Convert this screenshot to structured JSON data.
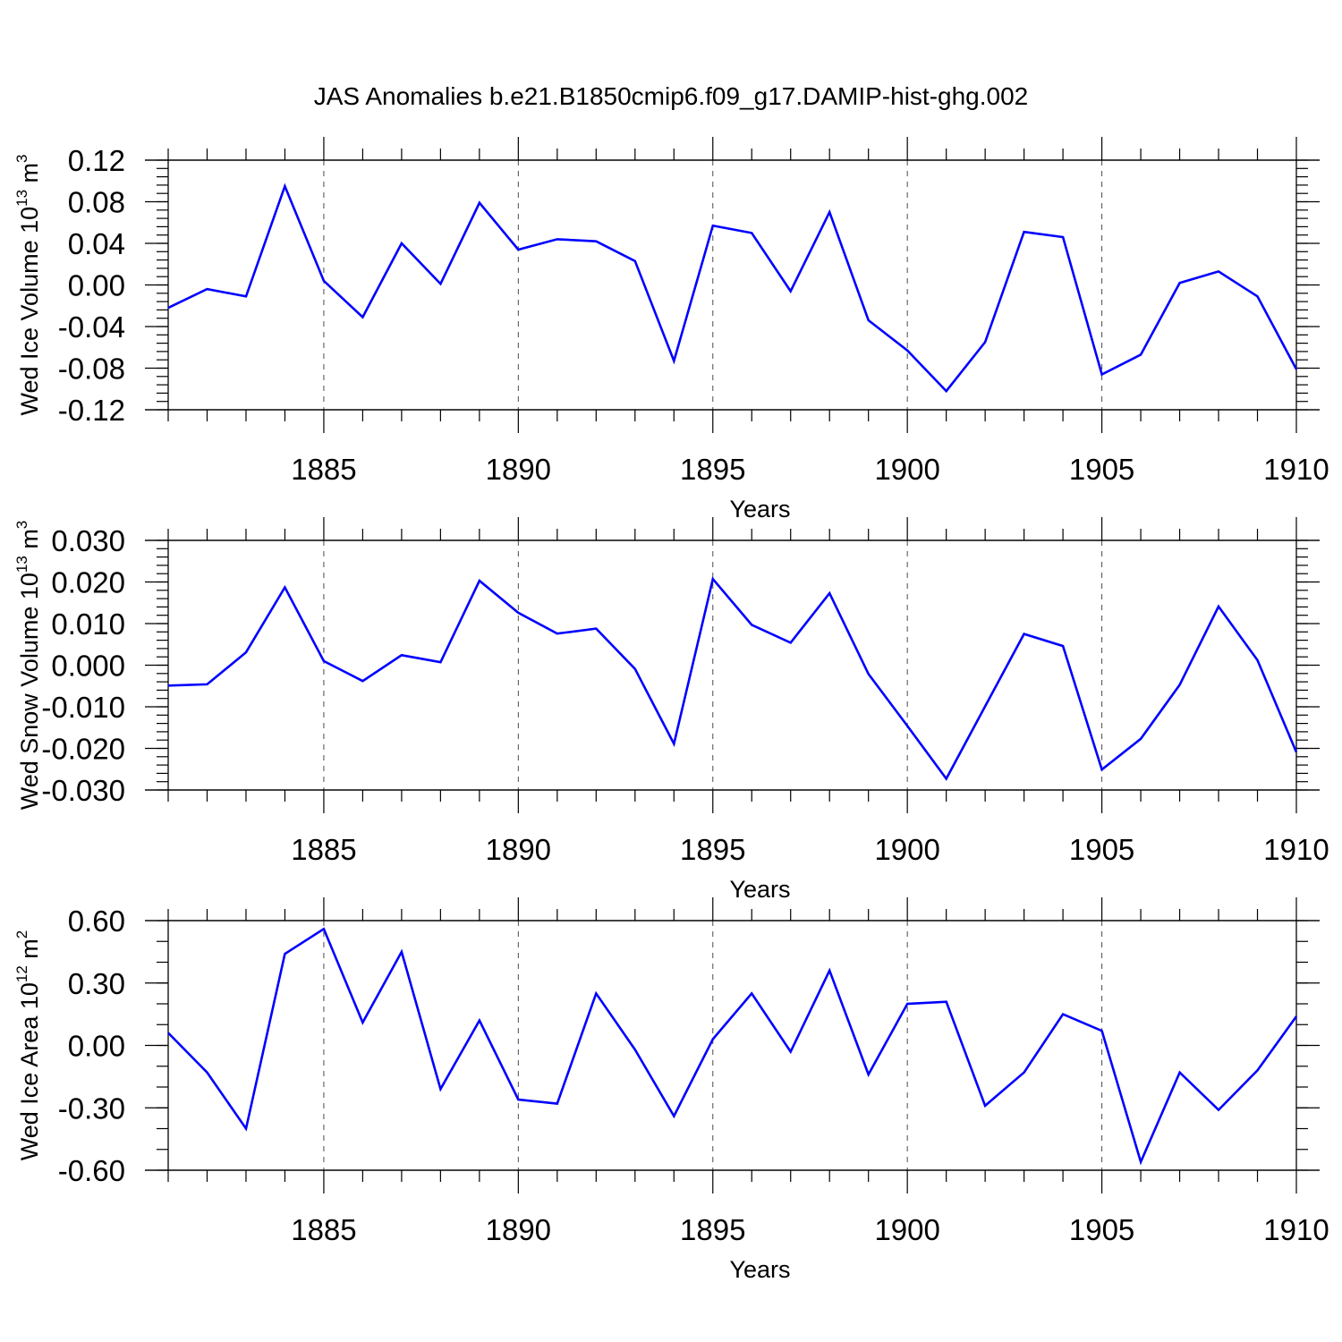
{
  "title": "JAS Anomalies b.e21.B1850cmip6.f09_g17.DAMIP-hist-ghg.002",
  "line_color": "#0000ff",
  "chart_data": [
    {
      "type": "line",
      "title": "JAS Anomalies b.e21.B1850cmip6.f09_g17.DAMIP-hist-ghg.002",
      "xlabel": "Years",
      "ylabel": {
        "text": "Wed Ice Volume 10",
        "sup": "13",
        "unit": " m",
        "unit_sup": "3"
      },
      "xlim": [
        1881,
        1910
      ],
      "ylim": [
        -0.12,
        0.12
      ],
      "x_ticks": [
        1885,
        1890,
        1895,
        1900,
        1905,
        1910
      ],
      "y_ticks": [
        -0.12,
        -0.08,
        -0.04,
        0.0,
        0.04,
        0.08,
        0.12
      ],
      "y_tick_labels": [
        "-0.12",
        "-0.08",
        "-0.04",
        "0.00",
        "0.04",
        "0.08",
        "0.12"
      ],
      "y_minor_step": 0.008,
      "vertical_grid": "dashed at major x ticks",
      "x": [
        1881,
        1882,
        1883,
        1884,
        1885,
        1886,
        1887,
        1888,
        1889,
        1890,
        1891,
        1892,
        1893,
        1894,
        1895,
        1896,
        1897,
        1898,
        1899,
        1900,
        1901,
        1902,
        1903,
        1904,
        1905,
        1906,
        1907,
        1908,
        1909,
        1910
      ],
      "values": [
        -0.022,
        -0.004,
        -0.011,
        0.095,
        0.004,
        -0.031,
        0.04,
        0.001,
        0.079,
        0.034,
        0.044,
        0.042,
        0.023,
        -0.073,
        0.057,
        0.05,
        -0.006,
        0.07,
        -0.034,
        -0.063,
        -0.102,
        -0.055,
        0.051,
        0.046,
        -0.086,
        -0.067,
        0.002,
        0.013,
        -0.011,
        -0.081
      ]
    },
    {
      "type": "line",
      "xlabel": "Years",
      "ylabel": {
        "text": "Wed Snow Volume 10",
        "sup": "13",
        "unit": " m",
        "unit_sup": "3"
      },
      "xlim": [
        1881,
        1910
      ],
      "ylim": [
        -0.03,
        0.03
      ],
      "x_ticks": [
        1885,
        1890,
        1895,
        1900,
        1905,
        1910
      ],
      "y_ticks": [
        -0.03,
        -0.02,
        -0.01,
        0.0,
        0.01,
        0.02,
        0.03
      ],
      "y_tick_labels": [
        "-0.030",
        "-0.020",
        "-0.010",
        "0.000",
        "0.010",
        "0.020",
        "0.030"
      ],
      "y_minor_step": 0.002,
      "vertical_grid": "dashed at major x ticks",
      "x": [
        1881,
        1882,
        1883,
        1884,
        1885,
        1886,
        1887,
        1888,
        1889,
        1890,
        1891,
        1892,
        1893,
        1894,
        1895,
        1896,
        1897,
        1898,
        1899,
        1900,
        1901,
        1902,
        1903,
        1904,
        1905,
        1906,
        1907,
        1908,
        1909,
        1910
      ],
      "values": [
        -0.0049,
        -0.0046,
        0.0031,
        0.0187,
        0.001,
        -0.0038,
        0.0024,
        0.0007,
        0.0203,
        0.0126,
        0.0076,
        0.0088,
        -0.0009,
        -0.0189,
        0.0207,
        0.0097,
        0.0054,
        0.0173,
        -0.0021,
        -0.0146,
        -0.0273,
        -0.0099,
        0.0075,
        0.0046,
        -0.0251,
        -0.0177,
        -0.0047,
        0.0141,
        0.0012,
        -0.0209
      ]
    },
    {
      "type": "line",
      "xlabel": "Years",
      "ylabel": {
        "text": "Wed Ice Area 10",
        "sup": "12",
        "unit": " m",
        "unit_sup": "2"
      },
      "xlim": [
        1881,
        1910
      ],
      "ylim": [
        -0.6,
        0.6
      ],
      "x_ticks": [
        1885,
        1890,
        1895,
        1900,
        1905,
        1910
      ],
      "y_ticks": [
        -0.6,
        -0.3,
        0.0,
        0.3,
        0.6
      ],
      "y_tick_labels": [
        "-0.60",
        "-0.30",
        "0.00",
        "0.30",
        "0.60"
      ],
      "y_minor_step": 0.1,
      "vertical_grid": "dashed at major x ticks",
      "x": [
        1881,
        1882,
        1883,
        1884,
        1885,
        1886,
        1887,
        1888,
        1889,
        1890,
        1891,
        1892,
        1893,
        1894,
        1895,
        1896,
        1897,
        1898,
        1899,
        1900,
        1901,
        1902,
        1903,
        1904,
        1905,
        1906,
        1907,
        1908,
        1909,
        1910
      ],
      "values": [
        0.06,
        -0.13,
        -0.4,
        0.44,
        0.56,
        0.11,
        0.45,
        -0.21,
        0.12,
        -0.26,
        -0.28,
        0.25,
        -0.02,
        -0.34,
        0.03,
        0.25,
        -0.03,
        0.36,
        -0.14,
        0.2,
        0.21,
        -0.29,
        -0.13,
        0.15,
        0.07,
        -0.56,
        -0.13,
        -0.31,
        -0.12,
        0.14
      ]
    }
  ]
}
